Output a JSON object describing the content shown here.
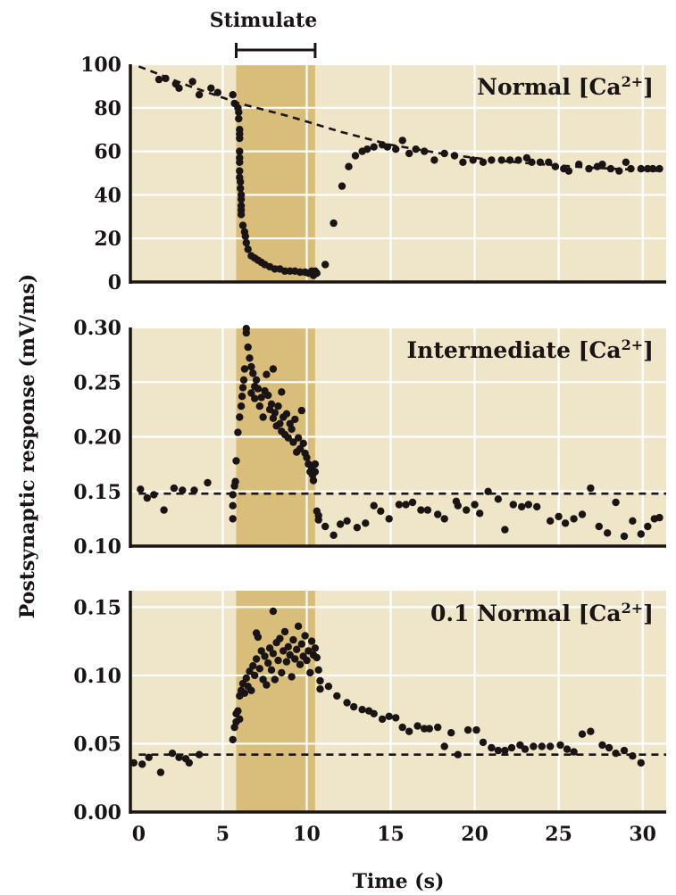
{
  "colors": {
    "plot_bg": "#efe5c8",
    "stim_band": "#d9bd7a",
    "grid": "#ffffff",
    "ink": "#1a1414"
  },
  "chart_data": [
    {
      "type": "scatter",
      "title_main": "Normal [Ca",
      "title_sup": "2+",
      "title_end": "]",
      "xlabel": "Time (s)",
      "ylabel": "Postsynaptic response (mV/ms)",
      "xlim": [
        -0.5,
        31.4
      ],
      "ylim": [
        0,
        100
      ],
      "yticks": [
        "0",
        "20",
        "40",
        "60",
        "80",
        "100"
      ],
      "ytick_values": [
        0,
        20,
        40,
        60,
        80,
        100
      ],
      "grid": true,
      "stimulus": {
        "label": "Stimulate",
        "start": 5.8,
        "end": 10.5
      },
      "baseline": {
        "style": "dashed",
        "type": "exp-decay",
        "points": [
          [
            0,
            99
          ],
          [
            3,
            90
          ],
          [
            6,
            82
          ],
          [
            9,
            76
          ],
          [
            12,
            69
          ],
          [
            15,
            63
          ],
          [
            18,
            59
          ],
          [
            21,
            56
          ],
          [
            24,
            54
          ],
          [
            27,
            52.5
          ],
          [
            31,
            51
          ]
        ]
      },
      "points": [
        [
          1.2,
          93
        ],
        [
          1.6,
          93.5
        ],
        [
          2.2,
          91
        ],
        [
          2.4,
          89
        ],
        [
          3.2,
          92
        ],
        [
          3.6,
          86
        ],
        [
          4.3,
          89
        ],
        [
          4.7,
          87
        ],
        [
          5.6,
          86
        ],
        [
          5.7,
          82
        ],
        [
          5.9,
          80
        ],
        [
          5.95,
          78
        ],
        [
          5.95,
          75
        ],
        [
          6.0,
          70
        ],
        [
          6.0,
          68
        ],
        [
          6.0,
          66
        ],
        [
          6.0,
          60
        ],
        [
          6.0,
          57
        ],
        [
          6.0,
          55
        ],
        [
          6.0,
          51
        ],
        [
          6.0,
          48
        ],
        [
          6.05,
          46
        ],
        [
          6.05,
          43
        ],
        [
          6.1,
          40
        ],
        [
          6.1,
          38
        ],
        [
          6.1,
          35
        ],
        [
          6.1,
          33
        ],
        [
          6.1,
          31
        ],
        [
          6.2,
          26
        ],
        [
          6.3,
          23
        ],
        [
          6.35,
          21
        ],
        [
          6.4,
          18
        ],
        [
          6.5,
          15
        ],
        [
          6.7,
          12
        ],
        [
          6.9,
          11
        ],
        [
          7.1,
          10
        ],
        [
          7.3,
          9
        ],
        [
          7.5,
          8
        ],
        [
          7.8,
          7
        ],
        [
          8.1,
          6
        ],
        [
          8.4,
          6
        ],
        [
          8.7,
          5
        ],
        [
          9.0,
          5
        ],
        [
          9.3,
          5
        ],
        [
          9.6,
          4.5
        ],
        [
          9.9,
          4.5
        ],
        [
          10.1,
          4
        ],
        [
          10.3,
          5
        ],
        [
          10.4,
          3
        ],
        [
          10.5,
          5
        ],
        [
          10.6,
          4
        ],
        [
          11.1,
          8
        ],
        [
          11.6,
          27
        ],
        [
          12.1,
          44
        ],
        [
          12.5,
          53
        ],
        [
          12.9,
          58
        ],
        [
          13.3,
          60
        ],
        [
          13.6,
          61
        ],
        [
          14.0,
          62
        ],
        [
          14.5,
          63
        ],
        [
          14.8,
          62
        ],
        [
          15.3,
          61
        ],
        [
          15.7,
          65
        ],
        [
          16.1,
          59
        ],
        [
          16.5,
          61
        ],
        [
          17.0,
          60
        ],
        [
          17.6,
          56
        ],
        [
          18.2,
          59
        ],
        [
          18.8,
          58
        ],
        [
          19.3,
          55
        ],
        [
          19.9,
          56
        ],
        [
          20.5,
          55
        ],
        [
          21.0,
          56
        ],
        [
          21.6,
          56
        ],
        [
          22.1,
          56
        ],
        [
          22.6,
          56
        ],
        [
          23.1,
          57
        ],
        [
          23.4,
          55
        ],
        [
          23.9,
          55
        ],
        [
          24.4,
          55
        ],
        [
          24.8,
          53
        ],
        [
          25.3,
          52
        ],
        [
          25.6,
          51
        ],
        [
          26.2,
          54
        ],
        [
          26.8,
          52
        ],
        [
          27.3,
          53
        ],
        [
          27.6,
          54
        ],
        [
          28.1,
          52
        ],
        [
          28.6,
          51
        ],
        [
          29.0,
          55
        ],
        [
          29.3,
          52
        ],
        [
          29.9,
          52
        ],
        [
          30.3,
          52
        ],
        [
          30.6,
          52
        ],
        [
          31.0,
          52
        ]
      ]
    },
    {
      "type": "scatter",
      "title_main": "Intermediate [Ca",
      "title_sup": "2+",
      "title_end": "]",
      "xlim": [
        -0.5,
        31.4
      ],
      "ylim": [
        0.1,
        0.3
      ],
      "yticks": [
        "0.10",
        "0.15",
        "0.20",
        "0.25",
        "0.30"
      ],
      "ytick_values": [
        0.1,
        0.15,
        0.2,
        0.25,
        0.3
      ],
      "grid": true,
      "stimulus": {
        "start": 5.8,
        "end": 10.5
      },
      "baseline": {
        "style": "dashed",
        "type": "flat",
        "points": [
          [
            0,
            0.148
          ],
          [
            31.4,
            0.148
          ]
        ]
      },
      "points": [
        [
          0.1,
          0.152
        ],
        [
          0.5,
          0.144
        ],
        [
          0.9,
          0.147
        ],
        [
          1.5,
          0.133
        ],
        [
          2.1,
          0.153
        ],
        [
          2.6,
          0.151
        ],
        [
          3.3,
          0.151
        ],
        [
          4.1,
          0.158
        ],
        [
          5.6,
          0.147
        ],
        [
          5.6,
          0.137
        ],
        [
          5.6,
          0.125
        ],
        [
          5.7,
          0.155
        ],
        [
          5.75,
          0.159
        ],
        [
          5.8,
          0.178
        ],
        [
          5.9,
          0.204
        ],
        [
          6.0,
          0.218
        ],
        [
          6.1,
          0.228
        ],
        [
          6.15,
          0.237
        ],
        [
          6.2,
          0.245
        ],
        [
          6.25,
          0.252
        ],
        [
          6.3,
          0.262
        ],
        [
          6.4,
          0.299
        ],
        [
          6.4,
          0.295
        ],
        [
          6.5,
          0.282
        ],
        [
          6.6,
          0.272
        ],
        [
          6.7,
          0.264
        ],
        [
          6.8,
          0.258
        ],
        [
          6.9,
          0.246
        ],
        [
          6.7,
          0.24
        ],
        [
          6.9,
          0.235
        ],
        [
          7.0,
          0.252
        ],
        [
          7.1,
          0.244
        ],
        [
          7.2,
          0.228
        ],
        [
          7.3,
          0.236
        ],
        [
          7.4,
          0.218
        ],
        [
          7.5,
          0.242
        ],
        [
          7.6,
          0.257
        ],
        [
          7.7,
          0.238
        ],
        [
          7.8,
          0.225
        ],
        [
          7.9,
          0.23
        ],
        [
          8.0,
          0.262
        ],
        [
          8.0,
          0.217
        ],
        [
          8.1,
          0.222
        ],
        [
          8.2,
          0.21
        ],
        [
          8.3,
          0.228
        ],
        [
          8.4,
          0.212
        ],
        [
          8.5,
          0.241
        ],
        [
          8.5,
          0.205
        ],
        [
          8.6,
          0.218
        ],
        [
          8.7,
          0.202
        ],
        [
          8.8,
          0.221
        ],
        [
          8.9,
          0.199
        ],
        [
          9.0,
          0.212
        ],
        [
          9.1,
          0.207
        ],
        [
          9.2,
          0.195
        ],
        [
          9.3,
          0.216
        ],
        [
          9.4,
          0.186
        ],
        [
          9.5,
          0.199
        ],
        [
          9.6,
          0.189
        ],
        [
          9.7,
          0.224
        ],
        [
          9.8,
          0.194
        ],
        [
          9.9,
          0.185
        ],
        [
          10.0,
          0.181
        ],
        [
          10.1,
          0.175
        ],
        [
          10.2,
          0.168
        ],
        [
          10.3,
          0.172
        ],
        [
          10.35,
          0.165
        ],
        [
          10.4,
          0.16
        ],
        [
          10.5,
          0.175
        ],
        [
          10.5,
          0.168
        ],
        [
          10.6,
          0.132
        ],
        [
          10.7,
          0.128
        ],
        [
          10.7,
          0.124
        ],
        [
          11.1,
          0.118
        ],
        [
          11.6,
          0.11
        ],
        [
          12.0,
          0.12
        ],
        [
          12.4,
          0.123
        ],
        [
          13.0,
          0.117
        ],
        [
          13.5,
          0.121
        ],
        [
          14.0,
          0.137
        ],
        [
          14.4,
          0.132
        ],
        [
          14.9,
          0.125
        ],
        [
          15.5,
          0.138
        ],
        [
          15.9,
          0.138
        ],
        [
          16.3,
          0.14
        ],
        [
          16.8,
          0.133
        ],
        [
          17.2,
          0.133
        ],
        [
          17.8,
          0.129
        ],
        [
          18.2,
          0.125
        ],
        [
          18.9,
          0.141
        ],
        [
          19.0,
          0.137
        ],
        [
          19.5,
          0.133
        ],
        [
          20.0,
          0.138
        ],
        [
          20.3,
          0.13
        ],
        [
          20.8,
          0.15
        ],
        [
          21.4,
          0.143
        ],
        [
          21.8,
          0.115
        ],
        [
          22.3,
          0.138
        ],
        [
          22.8,
          0.136
        ],
        [
          23.2,
          0.138
        ],
        [
          23.7,
          0.136
        ],
        [
          24.5,
          0.123
        ],
        [
          25.0,
          0.127
        ],
        [
          25.4,
          0.121
        ],
        [
          25.9,
          0.125
        ],
        [
          26.4,
          0.129
        ],
        [
          26.9,
          0.153
        ],
        [
          27.4,
          0.118
        ],
        [
          27.9,
          0.112
        ],
        [
          28.4,
          0.14
        ],
        [
          28.9,
          0.109
        ],
        [
          29.4,
          0.123
        ],
        [
          29.9,
          0.111
        ],
        [
          30.3,
          0.118
        ],
        [
          30.7,
          0.125
        ],
        [
          31.0,
          0.126
        ]
      ]
    },
    {
      "type": "scatter",
      "title_main": "0.1 Normal [Ca",
      "title_sup": "2+",
      "title_end": "]",
      "xlim": [
        -0.5,
        31.4
      ],
      "ylim": [
        0.0,
        0.162
      ],
      "yticks": [
        "0.00",
        "0.05",
        "0.10",
        "0.15"
      ],
      "ytick_values": [
        0.0,
        0.05,
        0.1,
        0.15
      ],
      "xticks": [
        "0",
        "5",
        "10",
        "15",
        "20",
        "25",
        "30"
      ],
      "xtick_values": [
        0,
        5,
        10,
        15,
        20,
        25,
        30
      ],
      "grid": true,
      "stimulus": {
        "start": 5.8,
        "end": 10.5
      },
      "baseline": {
        "style": "dashed",
        "type": "flat",
        "points": [
          [
            0,
            0.042
          ],
          [
            31.4,
            0.042
          ]
        ]
      },
      "points": [
        [
          -0.3,
          0.036
        ],
        [
          0.2,
          0.035
        ],
        [
          0.6,
          0.04
        ],
        [
          1.3,
          0.029
        ],
        [
          2.0,
          0.043
        ],
        [
          2.4,
          0.04
        ],
        [
          2.8,
          0.039
        ],
        [
          3.0,
          0.036
        ],
        [
          3.6,
          0.042
        ],
        [
          5.6,
          0.053
        ],
        [
          5.7,
          0.062
        ],
        [
          5.8,
          0.066
        ],
        [
          5.8,
          0.072
        ],
        [
          5.9,
          0.074
        ],
        [
          6.0,
          0.068
        ],
        [
          6.0,
          0.085
        ],
        [
          6.1,
          0.089
        ],
        [
          6.2,
          0.094
        ],
        [
          6.3,
          0.087
        ],
        [
          6.4,
          0.098
        ],
        [
          6.5,
          0.092
        ],
        [
          6.6,
          0.103
        ],
        [
          6.7,
          0.089
        ],
        [
          6.8,
          0.107
        ],
        [
          6.9,
          0.1
        ],
        [
          7.0,
          0.112
        ],
        [
          7.0,
          0.131
        ],
        [
          7.1,
          0.128
        ],
        [
          7.2,
          0.105
        ],
        [
          7.3,
          0.118
        ],
        [
          7.4,
          0.097
        ],
        [
          7.5,
          0.114
        ],
        [
          7.6,
          0.093
        ],
        [
          7.7,
          0.109
        ],
        [
          7.8,
          0.12
        ],
        [
          7.9,
          0.104
        ],
        [
          8.0,
          0.116
        ],
        [
          8.0,
          0.147
        ],
        [
          8.1,
          0.097
        ],
        [
          8.2,
          0.124
        ],
        [
          8.3,
          0.111
        ],
        [
          8.4,
          0.127
        ],
        [
          8.5,
          0.102
        ],
        [
          8.6,
          0.118
        ],
        [
          8.7,
          0.132
        ],
        [
          8.8,
          0.11
        ],
        [
          8.9,
          0.121
        ],
        [
          9.0,
          0.115
        ],
        [
          9.1,
          0.099
        ],
        [
          9.2,
          0.126
        ],
        [
          9.3,
          0.112
        ],
        [
          9.4,
          0.119
        ],
        [
          9.5,
          0.136
        ],
        [
          9.6,
          0.108
        ],
        [
          9.7,
          0.123
        ],
        [
          9.8,
          0.114
        ],
        [
          9.9,
          0.129
        ],
        [
          10.0,
          0.111
        ],
        [
          10.1,
          0.118
        ],
        [
          10.2,
          0.102
        ],
        [
          10.3,
          0.125
        ],
        [
          10.4,
          0.115
        ],
        [
          10.5,
          0.12
        ],
        [
          10.6,
          0.113
        ],
        [
          10.7,
          0.104
        ],
        [
          10.8,
          0.096
        ],
        [
          10.8,
          0.09
        ],
        [
          11.3,
          0.092
        ],
        [
          11.8,
          0.085
        ],
        [
          12.4,
          0.08
        ],
        [
          12.8,
          0.077
        ],
        [
          13.3,
          0.075
        ],
        [
          13.7,
          0.074
        ],
        [
          14.0,
          0.072
        ],
        [
          14.5,
          0.068
        ],
        [
          14.9,
          0.07
        ],
        [
          15.3,
          0.069
        ],
        [
          15.7,
          0.062
        ],
        [
          16.1,
          0.059
        ],
        [
          16.6,
          0.063
        ],
        [
          17.0,
          0.061
        ],
        [
          17.3,
          0.061
        ],
        [
          17.8,
          0.062
        ],
        [
          18.2,
          0.048
        ],
        [
          18.6,
          0.058
        ],
        [
          19.0,
          0.042
        ],
        [
          19.6,
          0.06
        ],
        [
          20.1,
          0.06
        ],
        [
          20.5,
          0.051
        ],
        [
          21.0,
          0.047
        ],
        [
          21.4,
          0.045
        ],
        [
          21.8,
          0.045
        ],
        [
          22.2,
          0.047
        ],
        [
          22.7,
          0.049
        ],
        [
          23.0,
          0.046
        ],
        [
          23.5,
          0.048
        ],
        [
          24.0,
          0.048
        ],
        [
          24.5,
          0.048
        ],
        [
          25.1,
          0.049
        ],
        [
          25.5,
          0.046
        ],
        [
          25.9,
          0.044
        ],
        [
          26.4,
          0.057
        ],
        [
          26.9,
          0.059
        ],
        [
          27.6,
          0.049
        ],
        [
          28.0,
          0.047
        ],
        [
          28.4,
          0.043
        ],
        [
          28.9,
          0.045
        ],
        [
          29.4,
          0.041
        ],
        [
          29.9,
          0.036
        ]
      ]
    }
  ]
}
